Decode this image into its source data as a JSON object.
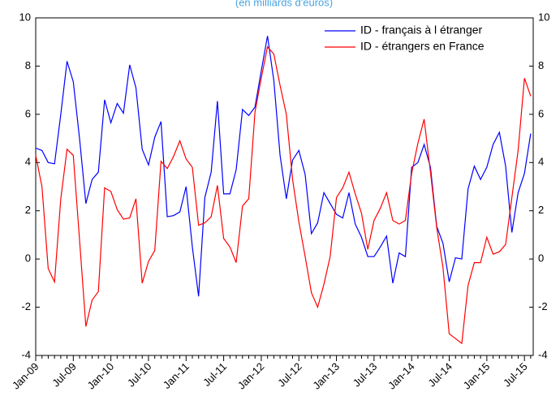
{
  "chart_data": {
    "type": "line",
    "title": "(en milliards d'euros)",
    "categories": [
      "Jan-09",
      null,
      null,
      null,
      null,
      null,
      "Jul-09",
      null,
      null,
      null,
      null,
      null,
      "Jan-10",
      null,
      null,
      null,
      null,
      null,
      "Jul-10",
      null,
      null,
      null,
      null,
      null,
      "Jan-11",
      null,
      null,
      null,
      null,
      null,
      "Jul-11",
      null,
      null,
      null,
      null,
      null,
      "Jan-12",
      null,
      null,
      null,
      null,
      null,
      "Jul-12",
      null,
      null,
      null,
      null,
      null,
      "Jan-13",
      null,
      null,
      null,
      null,
      null,
      "Jul-13",
      null,
      null,
      null,
      null,
      null,
      "Jan-14",
      null,
      null,
      null,
      null,
      null,
      "Jul-14",
      null,
      null,
      null,
      null,
      null,
      "Jan-15",
      null,
      null,
      null,
      null,
      null,
      "Jul-15",
      null
    ],
    "series": [
      {
        "name": "ID - français à l étranger",
        "color": "#0000ff",
        "values": [
          4.6,
          4.5,
          4.0,
          3.95,
          6.0,
          8.2,
          7.35,
          5.0,
          2.3,
          3.3,
          3.6,
          6.6,
          5.65,
          6.45,
          6.05,
          8.05,
          7.1,
          4.55,
          3.9,
          5.05,
          5.7,
          1.75,
          1.8,
          1.95,
          3.0,
          0.5,
          -1.55,
          2.55,
          3.6,
          6.55,
          2.7,
          2.7,
          3.7,
          6.2,
          5.95,
          6.3,
          7.8,
          9.25,
          7.4,
          4.3,
          2.5,
          4.1,
          4.5,
          3.5,
          1.05,
          1.5,
          2.75,
          2.3,
          1.85,
          1.7,
          2.75,
          1.45,
          0.9,
          0.1,
          0.1,
          0.5,
          0.95,
          -1.0,
          0.25,
          0.1,
          3.8,
          4.0,
          4.75,
          3.8,
          1.35,
          0.65,
          -0.95,
          0.05,
          0.0,
          2.9,
          3.85,
          3.3,
          3.8,
          4.75,
          5.25,
          3.85,
          1.1,
          2.75,
          3.55,
          5.2
        ]
      },
      {
        "name": "ID - étrangers en France",
        "color": "#ff0000",
        "values": [
          4.3,
          3.0,
          -0.4,
          -0.95,
          2.5,
          4.55,
          4.3,
          0.8,
          -2.8,
          -1.7,
          -1.35,
          2.95,
          2.8,
          2.05,
          1.65,
          1.7,
          2.5,
          -1.0,
          -0.1,
          0.35,
          4.05,
          3.75,
          4.25,
          4.9,
          4.15,
          3.8,
          1.4,
          1.5,
          1.75,
          3.05,
          0.85,
          0.5,
          -0.15,
          2.2,
          2.5,
          6.1,
          7.5,
          8.8,
          8.5,
          7.2,
          6.0,
          3.3,
          1.55,
          0.1,
          -1.4,
          -2.0,
          -1.05,
          0.1,
          2.55,
          2.95,
          3.6,
          2.7,
          1.9,
          0.4,
          1.6,
          2.1,
          2.75,
          1.6,
          1.45,
          1.6,
          3.55,
          4.8,
          5.8,
          3.6,
          1.3,
          -0.35,
          -3.1,
          -3.3,
          -3.5,
          -1.1,
          -0.15,
          -0.15,
          0.9,
          0.2,
          0.3,
          0.6,
          2.55,
          4.5,
          7.5,
          6.75
        ]
      }
    ],
    "ylim": [
      -4,
      10
    ],
    "yticks": [
      -4,
      -2,
      0,
      2,
      4,
      6,
      8,
      10
    ],
    "y2lim": [
      -4,
      10
    ],
    "y2ticks": [
      -4,
      -2,
      0,
      2,
      4,
      6,
      8,
      10
    ],
    "grid": false,
    "legend": "top-right"
  }
}
